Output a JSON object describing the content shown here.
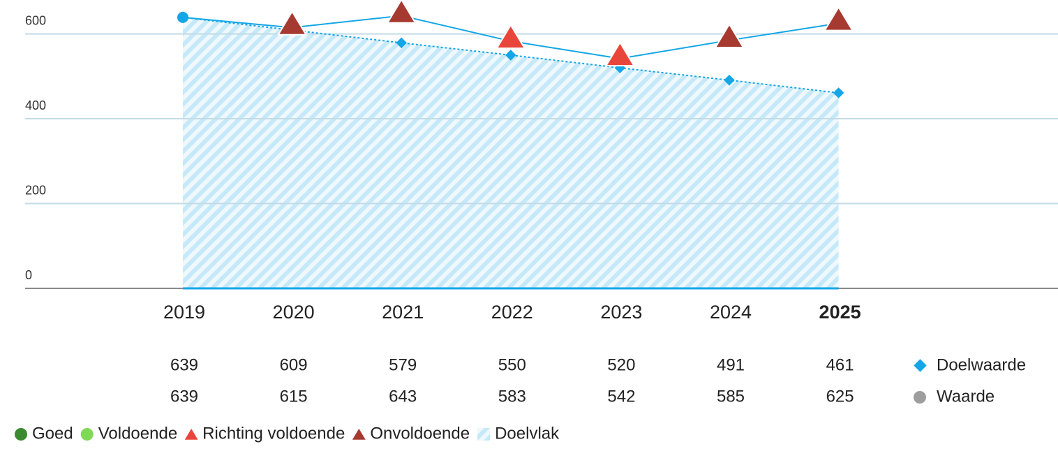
{
  "chart_data": {
    "type": "line",
    "categories": [
      "2019",
      "2020",
      "2021",
      "2022",
      "2023",
      "2024",
      "2025"
    ],
    "highlight_category": "2025",
    "ylim": [
      0,
      680
    ],
    "yticks": [
      0,
      200,
      400,
      600
    ],
    "grid": true,
    "series": [
      {
        "name": "Doelwaarde",
        "color": "#14a6e6",
        "dashed": true,
        "marker": "diamond",
        "area": true,
        "values": [
          639,
          609,
          579,
          550,
          520,
          491,
          461
        ]
      },
      {
        "name": "Waarde",
        "color": "#14a6e6",
        "legend_color": "#9e9e9e",
        "dashed": false,
        "marker": "status",
        "values": [
          639,
          615,
          643,
          583,
          542,
          585,
          625
        ],
        "point_status": [
          null,
          "Onvoldoende",
          "Onvoldoende",
          "Richting voldoende",
          "Richting voldoende",
          "Onvoldoende",
          "Onvoldoende"
        ]
      }
    ],
    "legend": [
      {
        "name": "Goed",
        "shape": "circle",
        "color": "#3b8a2f"
      },
      {
        "name": "Voldoende",
        "shape": "circle",
        "color": "#7fd957"
      },
      {
        "name": "Richting voldoende",
        "shape": "triangle",
        "color": "#e8463b"
      },
      {
        "name": "Onvoldoende",
        "shape": "triangle",
        "color": "#a63a31"
      },
      {
        "name": "Doelvlak",
        "shape": "hatch",
        "color": "#bfe6f8"
      }
    ]
  }
}
